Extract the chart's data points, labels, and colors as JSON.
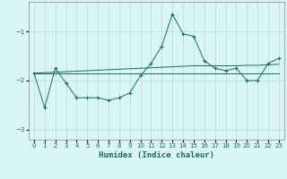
{
  "xlabel": "Humidex (Indice chaleur)",
  "bg_color": "#d9f5f5",
  "line_color": "#1a6b5a",
  "grid_color": "#b8dada",
  "x_values": [
    0,
    1,
    2,
    3,
    4,
    5,
    6,
    7,
    8,
    9,
    10,
    11,
    12,
    13,
    14,
    15,
    16,
    17,
    18,
    19,
    20,
    21,
    22,
    23
  ],
  "y_main": [
    -1.85,
    -2.55,
    -1.75,
    -2.05,
    -2.35,
    -2.35,
    -2.35,
    -2.4,
    -2.35,
    -2.25,
    -1.9,
    -1.65,
    -1.3,
    -0.65,
    -1.05,
    -1.1,
    -1.6,
    -1.75,
    -1.8,
    -1.75,
    -2.0,
    -2.0,
    -1.65,
    -1.55
  ],
  "y_flat1": [
    -1.85,
    -1.85,
    -1.85,
    -1.85,
    -1.85,
    -1.85,
    -1.85,
    -1.85,
    -1.85,
    -1.85,
    -1.85,
    -1.85,
    -1.85,
    -1.85,
    -1.85,
    -1.85,
    -1.85,
    -1.85,
    -1.85,
    -1.85,
    -1.85,
    -1.85,
    -1.85,
    -1.85
  ],
  "y_trend": [
    -1.85,
    -1.84,
    -1.83,
    -1.82,
    -1.81,
    -1.8,
    -1.79,
    -1.78,
    -1.77,
    -1.76,
    -1.75,
    -1.74,
    -1.73,
    -1.72,
    -1.71,
    -1.7,
    -1.7,
    -1.7,
    -1.7,
    -1.7,
    -1.69,
    -1.69,
    -1.68,
    -1.67
  ],
  "ylim": [
    -3.2,
    -0.4
  ],
  "xlim": [
    -0.5,
    23.5
  ],
  "yticks": [
    -3,
    -2,
    -1
  ],
  "xtick_labels": [
    "0",
    "1",
    "2",
    "3",
    "4",
    "5",
    "6",
    "7",
    "8",
    "9",
    "10",
    "11",
    "12",
    "13",
    "14",
    "15",
    "16",
    "17",
    "18",
    "19",
    "20",
    "21",
    "22",
    "23"
  ]
}
